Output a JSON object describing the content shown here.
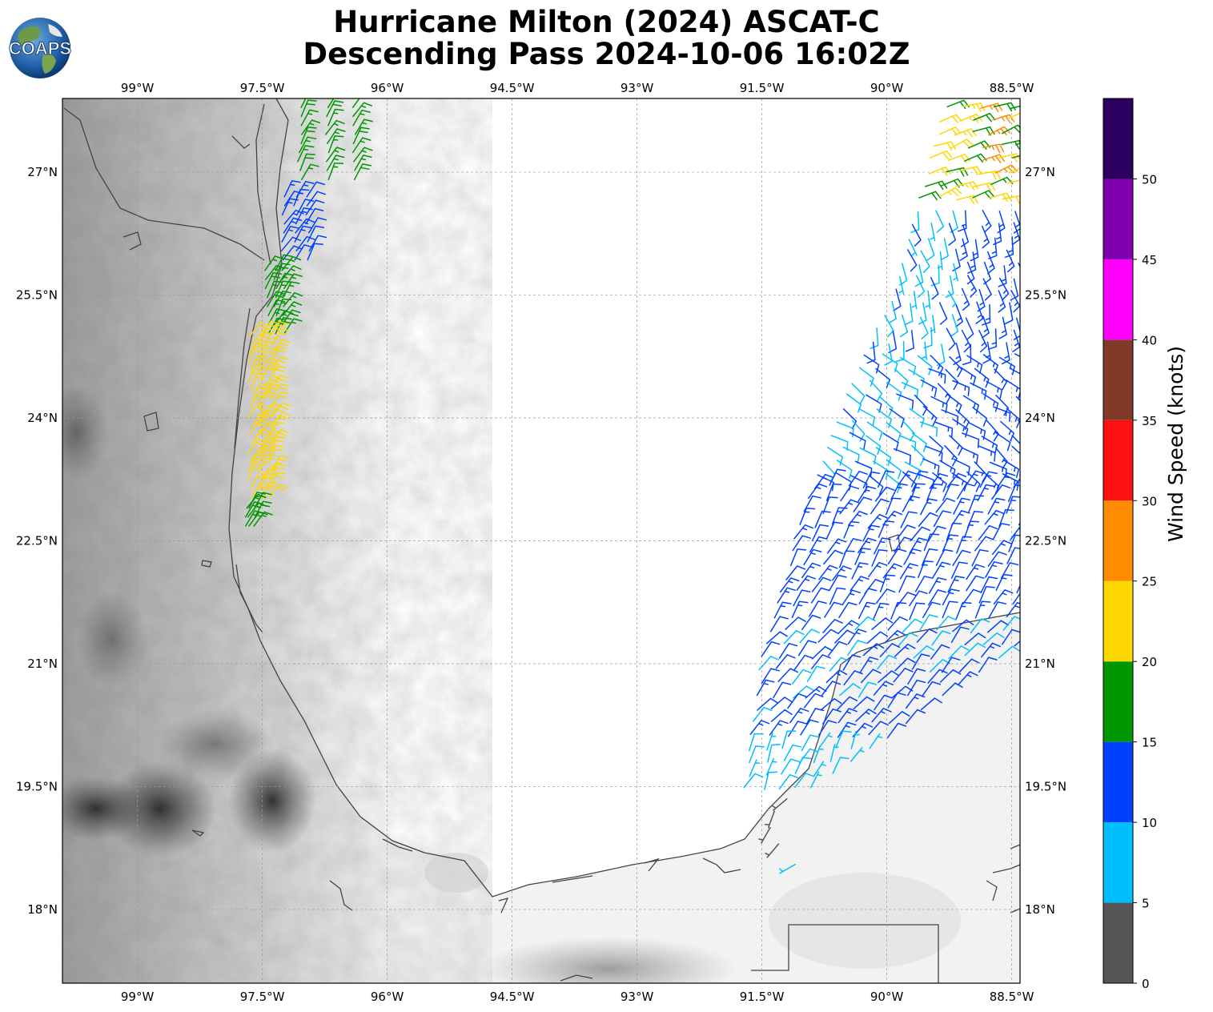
{
  "title": {
    "line1": "Hurricane Milton (2024) ASCAT-C",
    "line2": "Descending Pass 2024-10-06 16:02Z"
  },
  "logo": {
    "text": "COAPS"
  },
  "map": {
    "lon_range": [
      -99.9,
      -88.4
    ],
    "lat_range": [
      17.1,
      27.9
    ],
    "lon_ticks": [
      {
        "value": -99,
        "label": "99°W"
      },
      {
        "value": -97.5,
        "label": "97.5°W"
      },
      {
        "value": -96,
        "label": "96°W"
      },
      {
        "value": -94.5,
        "label": "94.5°W"
      },
      {
        "value": -93,
        "label": "93°W"
      },
      {
        "value": -91.5,
        "label": "91.5°W"
      },
      {
        "value": -90,
        "label": "90°W"
      },
      {
        "value": -88.5,
        "label": "88.5°W"
      }
    ],
    "lat_ticks": [
      {
        "value": 27,
        "label": "27°N"
      },
      {
        "value": 25.5,
        "label": "25.5°N"
      },
      {
        "value": 24,
        "label": "24°N"
      },
      {
        "value": 22.5,
        "label": "22.5°N"
      },
      {
        "value": 21,
        "label": "21°N"
      },
      {
        "value": 19.5,
        "label": "19.5°N"
      },
      {
        "value": 18,
        "label": "18°N"
      }
    ],
    "grid": true
  },
  "colorbar": {
    "label": "Wind Speed (knots)",
    "bins": [
      {
        "min": 0,
        "max": 5,
        "color": "#555555"
      },
      {
        "min": 5,
        "max": 10,
        "color": "#00bfff"
      },
      {
        "min": 10,
        "max": 15,
        "color": "#0040ff"
      },
      {
        "min": 15,
        "max": 20,
        "color": "#009600"
      },
      {
        "min": 20,
        "max": 25,
        "color": "#ffd700"
      },
      {
        "min": 25,
        "max": 30,
        "color": "#ff8c00"
      },
      {
        "min": 30,
        "max": 35,
        "color": "#ff1010"
      },
      {
        "min": 35,
        "max": 40,
        "color": "#7f3a28"
      },
      {
        "min": 40,
        "max": 45,
        "color": "#ff00ff"
      },
      {
        "min": 45,
        "max": 50,
        "color": "#8000b0"
      },
      {
        "min": 50,
        "max": 55,
        "color": "#2c0060"
      }
    ],
    "tick_labels": [
      "0",
      "5",
      "10",
      "15",
      "20",
      "25",
      "30",
      "35",
      "40",
      "45",
      "50"
    ]
  },
  "wind_swaths": {
    "west": {
      "segments": [
        {
          "lat_from": 27.9,
          "lat_to": 26.9,
          "lon_a": -97.05,
          "lon_b": -96.4,
          "speed": 17
        },
        {
          "lat_from": 26.7,
          "lat_to": 25.9,
          "lon_a": -97.25,
          "lon_b": -96.95,
          "speed": 12
        },
        {
          "lat_from": 25.8,
          "lat_to": 25.0,
          "lon_a": -97.45,
          "lon_b": -97.25,
          "speed": 17
        },
        {
          "lat_from": 25.0,
          "lat_to": 23.0,
          "lon_a": -97.65,
          "lon_b": -97.4,
          "speed": 22
        },
        {
          "lat_from": 22.9,
          "lat_to": 22.6,
          "lon_a": -97.7,
          "lon_b": -97.6,
          "speed": 17
        }
      ]
    },
    "east": {
      "lat_from": 27.8,
      "lat_to": 19.4,
      "west_edge": [
        [
          27.8,
          -89.3
        ],
        [
          25.5,
          -89.9
        ],
        [
          24.0,
          -90.6
        ],
        [
          22.5,
          -91.1
        ],
        [
          21.0,
          -91.5
        ],
        [
          19.4,
          -91.7
        ]
      ],
      "east_edge": [
        [
          27.8,
          -88.4
        ],
        [
          21.2,
          -88.4
        ],
        [
          19.4,
          -90.8
        ]
      ]
    }
  }
}
